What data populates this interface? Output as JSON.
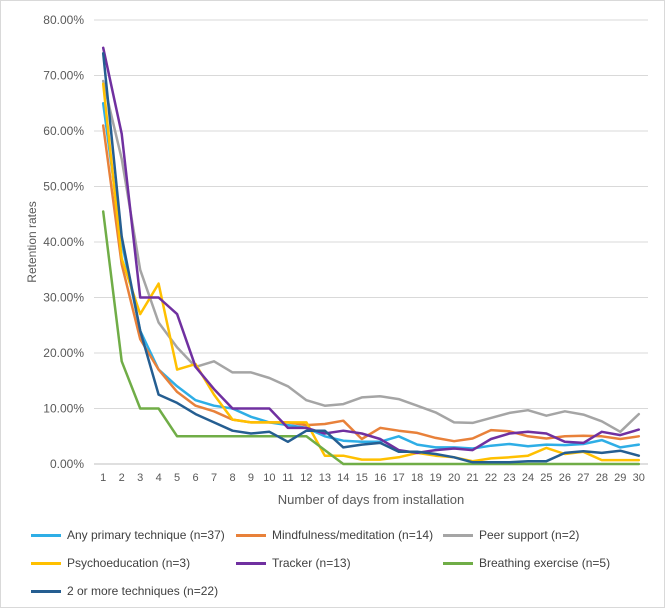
{
  "chart_data": {
    "type": "line",
    "title": "",
    "xlabel": "Number of days from installation",
    "ylabel": "Retention rates",
    "x": [
      1,
      2,
      3,
      4,
      5,
      6,
      7,
      8,
      9,
      10,
      11,
      12,
      13,
      14,
      15,
      16,
      17,
      18,
      19,
      20,
      21,
      22,
      23,
      24,
      25,
      26,
      27,
      28,
      29,
      30
    ],
    "ylim": [
      0,
      80
    ],
    "yticks": [
      "0.00%",
      "10.00%",
      "20.00%",
      "30.00%",
      "40.00%",
      "50.00%",
      "60.00%",
      "70.00%",
      "80.00%"
    ],
    "gridlines": true,
    "legend_position": "bottom",
    "series": [
      {
        "name": "Any primary technique (n=37)",
        "color": "#2eaee6",
        "values": [
          65.0,
          40.0,
          24.0,
          17.0,
          14.0,
          11.5,
          10.5,
          10.0,
          8.5,
          7.5,
          7.0,
          6.5,
          5.0,
          4.2,
          4.0,
          4.0,
          5.0,
          3.5,
          3.0,
          3.0,
          2.8,
          3.3,
          3.6,
          3.2,
          3.5,
          3.4,
          3.6,
          4.3,
          3.0,
          3.5
        ]
      },
      {
        "name": "Mindfulness/meditation (n=14)",
        "color": "#e8813a",
        "values": [
          61.0,
          36.0,
          22.5,
          17.0,
          13.0,
          10.5,
          9.5,
          8.0,
          7.5,
          7.5,
          7.5,
          7.0,
          7.2,
          7.8,
          4.5,
          6.5,
          6.0,
          5.6,
          4.7,
          4.1,
          4.6,
          6.1,
          5.9,
          5.0,
          4.6,
          5.0,
          5.1,
          5.0,
          4.5,
          5.0
        ]
      },
      {
        "name": "Peer support (n=2)",
        "color": "#a5a5a5",
        "values": [
          69.0,
          55.0,
          35.0,
          25.5,
          21.0,
          17.5,
          18.5,
          16.5,
          16.5,
          15.5,
          14.0,
          11.5,
          10.5,
          10.8,
          12.0,
          12.2,
          11.7,
          10.5,
          9.3,
          7.5,
          7.4,
          8.3,
          9.2,
          9.7,
          8.7,
          9.5,
          8.9,
          7.7,
          5.8,
          9.0
        ]
      },
      {
        "name": "Psychoeducation (n=3)",
        "color": "#ffc000",
        "values": [
          68.5,
          37.0,
          27.0,
          32.5,
          17.0,
          18.0,
          12.5,
          8.0,
          7.5,
          7.5,
          7.5,
          7.5,
          1.5,
          1.5,
          0.8,
          0.8,
          1.2,
          2.0,
          1.5,
          1.2,
          0.5,
          1.0,
          1.2,
          1.5,
          2.9,
          1.8,
          2.2,
          0.7,
          0.7,
          0.7
        ]
      },
      {
        "name": "Tracker (n=13)",
        "color": "#7030a0",
        "values": [
          75.0,
          59.5,
          30.0,
          30.0,
          27.0,
          17.5,
          13.5,
          10.0,
          10.0,
          10.0,
          6.5,
          6.5,
          5.5,
          6.0,
          5.5,
          4.5,
          2.5,
          2.0,
          2.5,
          2.8,
          2.5,
          4.5,
          5.5,
          5.8,
          5.5,
          4.0,
          3.8,
          5.8,
          5.2,
          6.2
        ]
      },
      {
        "name": "Breathing exercise (n=5)",
        "color": "#70ad47",
        "values": [
          45.5,
          18.5,
          10.0,
          10.0,
          5.0,
          5.0,
          5.0,
          5.0,
          5.0,
          5.0,
          5.0,
          5.0,
          2.5,
          0.0,
          0.0,
          0.0,
          0.0,
          0.0,
          0.0,
          0.0,
          0.0,
          0.0,
          0.0,
          0.0,
          0.0,
          0.0,
          0.0,
          0.0,
          0.0,
          0.0
        ]
      },
      {
        "name": "2 or more techniques (n=22)",
        "color": "#255e91",
        "values": [
          74.0,
          41.0,
          24.0,
          12.5,
          11.0,
          9.0,
          7.5,
          6.0,
          5.5,
          5.8,
          4.0,
          6.0,
          6.0,
          3.0,
          3.5,
          3.8,
          2.2,
          2.2,
          1.8,
          1.2,
          0.3,
          0.3,
          0.3,
          0.5,
          0.5,
          2.0,
          2.3,
          2.0,
          2.4,
          1.5
        ]
      }
    ]
  }
}
